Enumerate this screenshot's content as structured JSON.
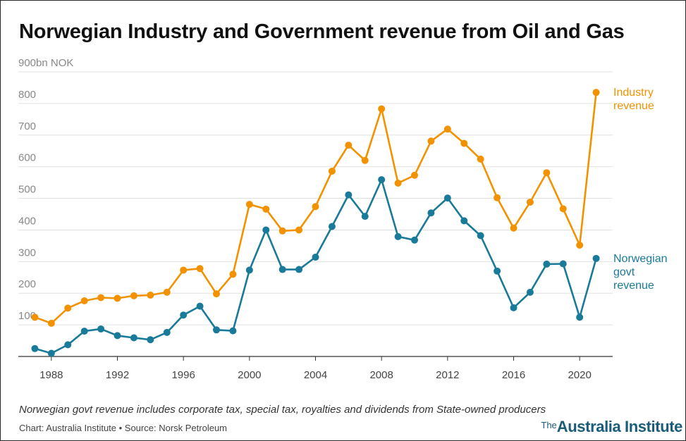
{
  "chart_data": {
    "type": "line",
    "title": "Norwegian Industry and Government revenue from Oil and Gas",
    "y_unit_label": "900bn NOK",
    "ylim": [
      0,
      900
    ],
    "y_ticks": [
      100,
      200,
      300,
      400,
      500,
      600,
      700,
      800
    ],
    "x_ticks": [
      1988,
      1992,
      1996,
      2000,
      2004,
      2008,
      2012,
      2016,
      2020
    ],
    "xlim": [
      1986,
      2022
    ],
    "grid": true,
    "legend": "direct-labels-right",
    "x": [
      1987,
      1988,
      1989,
      1990,
      1991,
      1992,
      1993,
      1994,
      1995,
      1996,
      1997,
      1998,
      1999,
      2000,
      2001,
      2002,
      2003,
      2004,
      2005,
      2006,
      2007,
      2008,
      2009,
      2010,
      2011,
      2012,
      2013,
      2014,
      2015,
      2016,
      2017,
      2018,
      2019,
      2020,
      2021
    ],
    "series": [
      {
        "name": "Industry revenue",
        "label_lines": [
          "Industry",
          "revenue"
        ],
        "color": "#f39200",
        "values": [
          124,
          105,
          153,
          176,
          186,
          184,
          192,
          194,
          203,
          273,
          278,
          198,
          260,
          481,
          466,
          397,
          400,
          474,
          586,
          668,
          620,
          783,
          548,
          573,
          681,
          719,
          674,
          624,
          502,
          406,
          488,
          581,
          467,
          352,
          835
        ]
      },
      {
        "name": "Norwegian govt revenue",
        "label_lines": [
          "Norwegian",
          "govt",
          "revenue"
        ],
        "color": "#1a7a99",
        "values": [
          25,
          10,
          37,
          80,
          87,
          66,
          59,
          53,
          76,
          131,
          159,
          84,
          81,
          273,
          400,
          275,
          275,
          314,
          411,
          511,
          443,
          559,
          379,
          368,
          454,
          501,
          429,
          382,
          270,
          154,
          203,
          292,
          293,
          124,
          310
        ]
      }
    ]
  },
  "footer": {
    "note": "Norwegian govt revenue includes corporate tax, special tax, royalties and dividends from State-owned producers",
    "credits": "Chart: Australia Institute • Source: Norsk Petroleum",
    "logo_prefix": "The",
    "logo_name": "Australia Institute"
  }
}
